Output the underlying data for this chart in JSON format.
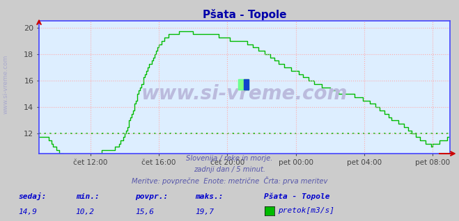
{
  "title": "Pšata - Topole",
  "title_color": "#0000aa",
  "bg_color": "#cccccc",
  "plot_bg_color": "#ddeeff",
  "line_color": "#00bb00",
  "grid_color": "#ffaaaa",
  "axis_color": "#4444ff",
  "watermark_text": "www.si-vreme.com",
  "watermark_color": "#bbbbdd",
  "ylabel_text": "www.si-vreme.com",
  "ylabel_color": "#aaaacc",
  "subtitle_lines": [
    "Slovenija / reke in morje.",
    "zadnji dan / 5 minut.",
    "Meritve: povprečne  Enote: metrične  Črta: prva meritev"
  ],
  "subtitle_color": "#5555aa",
  "stats_labels": [
    "sedaj:",
    "min.:",
    "povpr.:",
    "maks.:"
  ],
  "stats_values": [
    "14,9",
    "10,2",
    "15,6",
    "19,7"
  ],
  "stats_color": "#0000cc",
  "legend_title": "Pšata - Topole",
  "legend_box_color": "#00bb00",
  "legend_label": "pretok[m3/s]",
  "ylim": [
    10.5,
    20.5
  ],
  "yticks": [
    12,
    14,
    16,
    18,
    20
  ],
  "dashed_hline_y": 12.0,
  "xtick_labels": [
    "čet 12:00",
    "čet 16:00",
    "čet 20:00",
    "pet 00:00",
    "pet 04:00",
    "pet 08:00"
  ],
  "xtick_hours": [
    3,
    7,
    11,
    15,
    19,
    23
  ],
  "xlim": [
    0,
    24
  ],
  "flow_x": [
    0,
    1,
    2,
    3,
    4,
    5,
    6,
    7,
    8,
    9,
    10,
    11,
    12,
    13,
    14,
    15,
    16,
    17,
    18,
    19,
    20,
    21,
    22,
    23,
    24,
    25,
    26,
    27,
    28,
    29,
    30,
    31,
    32,
    33,
    34,
    35,
    36,
    37,
    38,
    39,
    40,
    41,
    42,
    43,
    44,
    45,
    46,
    47,
    48,
    49,
    50,
    51,
    52,
    53,
    54,
    55,
    56,
    57,
    58,
    59,
    60,
    61,
    62,
    63,
    64,
    65,
    66,
    67,
    68,
    69,
    70,
    71,
    72,
    73,
    74,
    75,
    76,
    77,
    78,
    79,
    80,
    81,
    82,
    83,
    84,
    85,
    86,
    87,
    88,
    89,
    90,
    91,
    92,
    93,
    94,
    95,
    96,
    97,
    98,
    99,
    100,
    101,
    102,
    103,
    104,
    105,
    106,
    107,
    108,
    109,
    110,
    111,
    112,
    113,
    114,
    115,
    116,
    117,
    118,
    119,
    120,
    121,
    122,
    123,
    124,
    125,
    126,
    127,
    128,
    129,
    130,
    131,
    132,
    133,
    134,
    135,
    136,
    137,
    138,
    139,
    140,
    141,
    142,
    143,
    144,
    145,
    146,
    147,
    148,
    149,
    150,
    151,
    152,
    153,
    154,
    155,
    156,
    157,
    158,
    159,
    160,
    161,
    162,
    163,
    164,
    165,
    166,
    167,
    168,
    169,
    170,
    171,
    172,
    173,
    174,
    175,
    176,
    177,
    178,
    179,
    180,
    181,
    182,
    183,
    184,
    185,
    186,
    187,
    188,
    189,
    190,
    191,
    192,
    193,
    194,
    195,
    196,
    197,
    198,
    199,
    200,
    201,
    202,
    203,
    204,
    205,
    206,
    207,
    208,
    209,
    210,
    211,
    212,
    213,
    214,
    215,
    216,
    217,
    218,
    219,
    220,
    221,
    222,
    223,
    224,
    225,
    226,
    227,
    228,
    229,
    230,
    231,
    232,
    233,
    234,
    235,
    236,
    237,
    238,
    239,
    240,
    241,
    242,
    243,
    244,
    245,
    246,
    247,
    248,
    249,
    250,
    251,
    252,
    253,
    254,
    255,
    256,
    257,
    258,
    259,
    260,
    261,
    262,
    263,
    264,
    265,
    266,
    267,
    268,
    269,
    270,
    271,
    272,
    273,
    274,
    275,
    276,
    277,
    278,
    279,
    280,
    281,
    282,
    283,
    284,
    285,
    286,
    287
  ],
  "num_points": 288
}
